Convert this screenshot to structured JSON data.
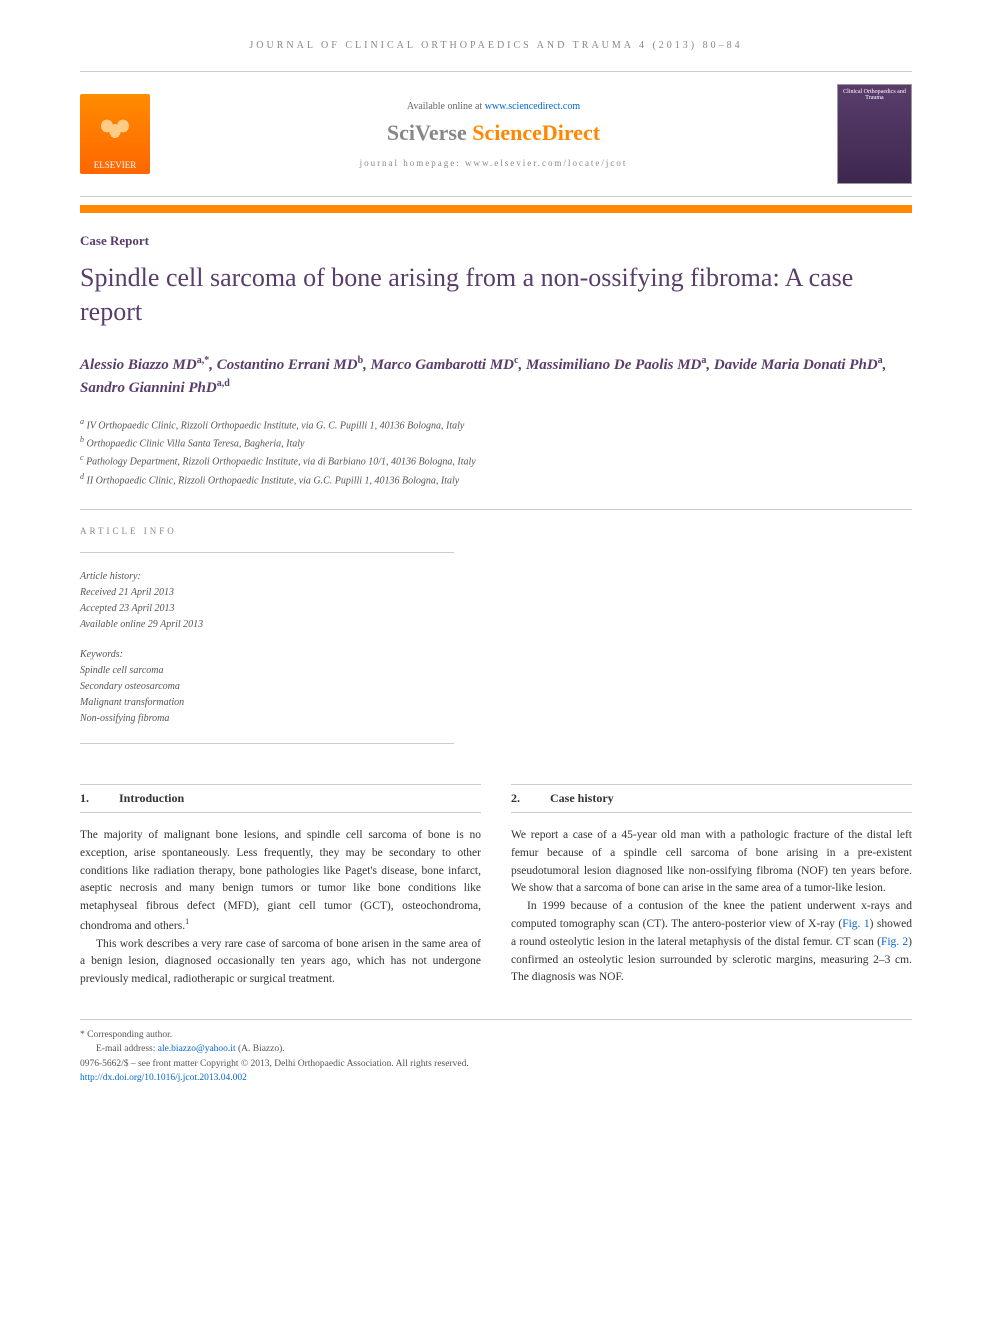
{
  "journal_header": "JOURNAL OF CLINICAL ORTHOPAEDICS AND TRAUMA 4 (2013) 80–84",
  "header": {
    "available_text": "Available online at ",
    "available_url": "www.sciencedirect.com",
    "sciverse_sci": "SciVerse ",
    "sciverse_direct": "ScienceDirect",
    "homepage_label": "journal homepage: ",
    "homepage_url": "www.elsevier.com/locate/jcot",
    "elsevier_label": "ELSEVIER",
    "cover_title": "Clinical Orthopaedics and Trauma"
  },
  "article_type": "Case Report",
  "title": "Spindle cell sarcoma of bone arising from a non-ossifying fibroma: A case report",
  "authors_html": "Alessio Biazzo MD<sup>a,*</sup>, Costantino Errani MD<sup>b</sup>, Marco Gambarotti MD<sup>c</sup>, Massimiliano De Paolis MD<sup>a</sup>, Davide Maria Donati PhD<sup>a</sup>, Sandro Giannini PhD<sup>a,d</sup>",
  "affiliations": [
    {
      "sup": "a",
      "text": "IV Orthopaedic Clinic, Rizzoli Orthopaedic Institute, via G. C. Pupilli 1, 40136 Bologna, Italy"
    },
    {
      "sup": "b",
      "text": "Orthopaedic Clinic Villa Santa Teresa, Bagheria, Italy"
    },
    {
      "sup": "c",
      "text": "Pathology Department, Rizzoli Orthopaedic Institute, via di Barbiano 10/1, 40136 Bologna, Italy"
    },
    {
      "sup": "d",
      "text": "II Orthopaedic Clinic, Rizzoli Orthopaedic Institute, via G.C. Pupilli 1, 40136 Bologna, Italy"
    }
  ],
  "article_info": {
    "label": "ARTICLE INFO",
    "history_label": "Article history:",
    "history": [
      "Received 21 April 2013",
      "Accepted 23 April 2013",
      "Available online 29 April 2013"
    ],
    "keywords_label": "Keywords:",
    "keywords": [
      "Spindle cell sarcoma",
      "Secondary osteosarcoma",
      "Malignant transformation",
      "Non-ossifying fibroma"
    ]
  },
  "sections": {
    "intro": {
      "num": "1.",
      "title": "Introduction",
      "paragraphs": [
        "The majority of malignant bone lesions, and spindle cell sarcoma of bone is no exception, arise spontaneously. Less frequently, they may be secondary to other conditions like radiation therapy, bone pathologies like Paget's disease, bone infarct, aseptic necrosis and many benign tumors or tumor like bone conditions like metaphyseal fibrous defect (MFD), giant cell tumor (GCT), osteochondroma, chondroma and others.",
        "This work describes a very rare case of sarcoma of bone arisen in the same area of a benign lesion, diagnosed occasionally ten years ago, which has not undergone previously medical, radiotherapic or surgical treatment."
      ]
    },
    "case": {
      "num": "2.",
      "title": "Case history",
      "paragraphs": [
        "We report a case of a 45-year old man with a pathologic fracture of the distal left femur because of a spindle cell sarcoma of bone arising in a pre-existent pseudotumoral lesion diagnosed like non-ossifying fibroma (NOF) ten years before. We show that a sarcoma of bone can arise in the same area of a tumor-like lesion.",
        "In 1999 because of a contusion of the knee the patient underwent x-rays and computed tomography scan (CT). The antero-posterior view of X-ray (Fig. 1) showed a round osteolytic lesion in the lateral metaphysis of the distal femur. CT scan (Fig. 2) confirmed an osteolytic lesion surrounded by sclerotic margins, measuring 2–3 cm. The diagnosis was NOF."
      ]
    }
  },
  "footer": {
    "corresponding": "* Corresponding author.",
    "email_label": "E-mail address: ",
    "email": "ale.biazzo@yahoo.it",
    "email_author": " (A. Biazzo).",
    "copyright": "0976-5662/$ – see front matter Copyright © 2013, Delhi Orthopaedic Association. All rights reserved.",
    "doi": "http://dx.doi.org/10.1016/j.jcot.2013.04.002"
  },
  "colors": {
    "accent_purple": "#5a3d6b",
    "accent_orange": "#ff8800",
    "link_blue": "#0066cc",
    "text_gray": "#888888",
    "body_text": "#333333",
    "divider": "#cccccc"
  },
  "typography": {
    "title_fontsize": 26,
    "body_fontsize": 11.5,
    "header_letterspacing": 3
  }
}
